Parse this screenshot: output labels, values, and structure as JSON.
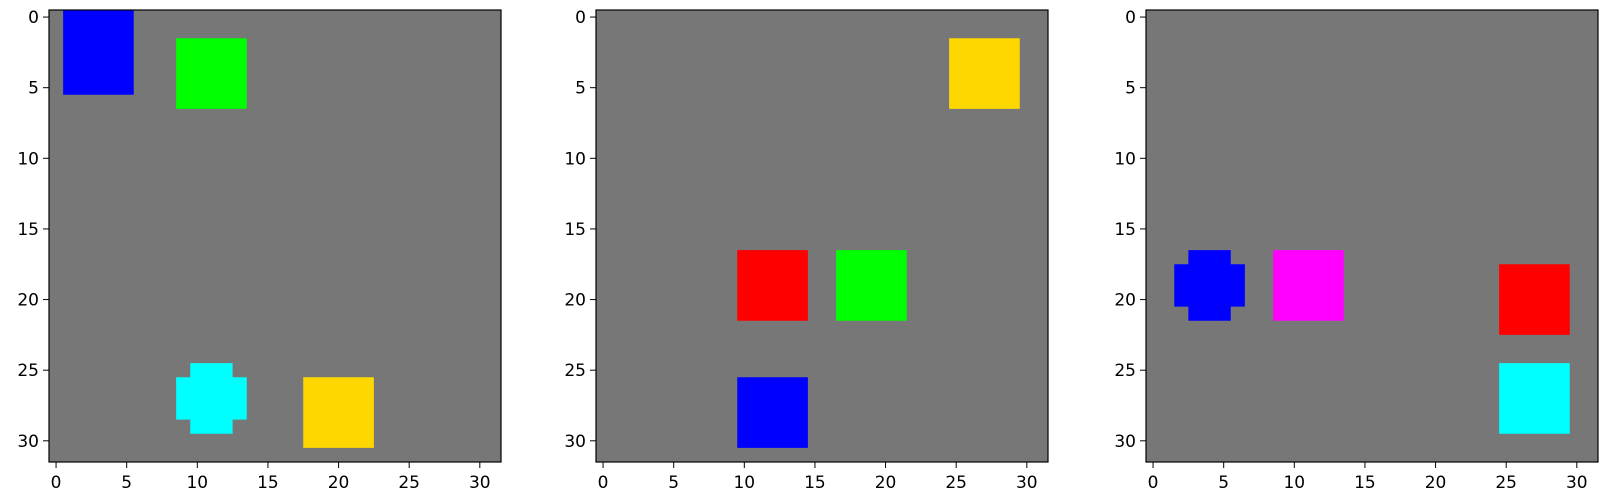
{
  "background_color": "#777777",
  "chart_data": [
    {
      "type": "heatmap",
      "xlim": [
        -0.5,
        31.5
      ],
      "ylim": [
        31.5,
        -0.5
      ],
      "xticks": [
        0,
        5,
        10,
        15,
        20,
        25,
        30
      ],
      "yticks": [
        0,
        5,
        10,
        15,
        20,
        25,
        30
      ],
      "grid": false,
      "shapes": [
        {
          "shape": "square",
          "color": "#0000FF",
          "x_range": [
            1,
            5
          ],
          "y_range": [
            0,
            5
          ]
        },
        {
          "shape": "square",
          "color": "#00FF00",
          "x_range": [
            9,
            13
          ],
          "y_range": [
            2,
            6
          ]
        },
        {
          "shape": "plus",
          "color": "#00FFFF",
          "x_range": [
            9,
            13
          ],
          "y_range": [
            25,
            29
          ]
        },
        {
          "shape": "square",
          "color": "#FFD700",
          "x_range": [
            18,
            22
          ],
          "y_range": [
            26,
            30
          ]
        }
      ]
    },
    {
      "type": "heatmap",
      "xlim": [
        -0.5,
        31.5
      ],
      "ylim": [
        31.5,
        -0.5
      ],
      "xticks": [
        0,
        5,
        10,
        15,
        20,
        25,
        30
      ],
      "yticks": [
        0,
        5,
        10,
        15,
        20,
        25,
        30
      ],
      "grid": false,
      "shapes": [
        {
          "shape": "square",
          "color": "#FFD700",
          "x_range": [
            25,
            29
          ],
          "y_range": [
            2,
            6
          ]
        },
        {
          "shape": "square",
          "color": "#FF0000",
          "x_range": [
            10,
            14
          ],
          "y_range": [
            17,
            21
          ]
        },
        {
          "shape": "square",
          "color": "#00FF00",
          "x_range": [
            17,
            21
          ],
          "y_range": [
            17,
            21
          ]
        },
        {
          "shape": "square",
          "color": "#0000FF",
          "x_range": [
            10,
            14
          ],
          "y_range": [
            26,
            30
          ]
        }
      ]
    },
    {
      "type": "heatmap",
      "xlim": [
        -0.5,
        31.5
      ],
      "ylim": [
        31.5,
        -0.5
      ],
      "xticks": [
        0,
        5,
        10,
        15,
        20,
        25,
        30
      ],
      "yticks": [
        0,
        5,
        10,
        15,
        20,
        25,
        30
      ],
      "grid": false,
      "shapes": [
        {
          "shape": "plus",
          "color": "#0000FF",
          "x_range": [
            2,
            6
          ],
          "y_range": [
            17,
            21
          ]
        },
        {
          "shape": "square",
          "color": "#FF00FF",
          "x_range": [
            9,
            13
          ],
          "y_range": [
            17,
            21
          ]
        },
        {
          "shape": "square",
          "color": "#FF0000",
          "x_range": [
            25,
            29
          ],
          "y_range": [
            18,
            22
          ]
        },
        {
          "shape": "square",
          "color": "#00FFFF",
          "x_range": [
            25,
            29
          ],
          "y_range": [
            25,
            29
          ]
        }
      ]
    }
  ]
}
